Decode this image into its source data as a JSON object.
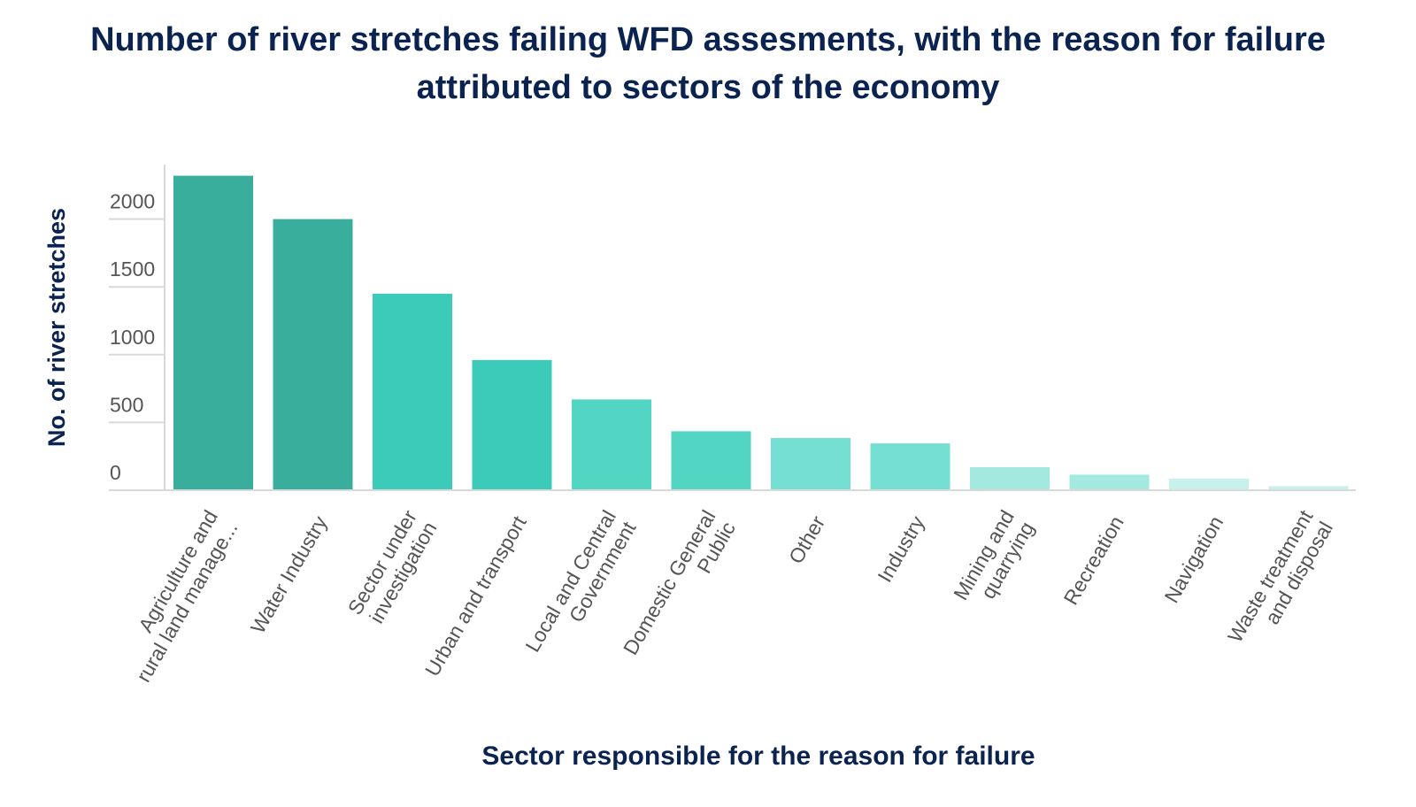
{
  "chart_data": {
    "type": "bar",
    "title_lines": [
      "Number of river stretches failing WFD assesments, with the reason for failure",
      "attributed to sectors of the economy"
    ],
    "xlabel": "Sector responsible for the reason for failure",
    "ylabel": "No. of river stretches",
    "ylim": [
      0,
      2400
    ],
    "yticks": [
      0,
      500,
      1000,
      1500,
      2000
    ],
    "grid": false,
    "categories": [
      [
        "Agriculture and",
        "rural land manage..."
      ],
      [
        "Water Industry"
      ],
      [
        "Sector under",
        "investigation"
      ],
      [
        "Urban and transport"
      ],
      [
        "Local and Central",
        "Government"
      ],
      [
        "Domestic General",
        "Public"
      ],
      [
        "Other"
      ],
      [
        "Industry"
      ],
      [
        "Mining and",
        "quarrying"
      ],
      [
        "Recreation"
      ],
      [
        "Navigation"
      ],
      [
        "Waste treatment",
        "and disposal"
      ]
    ],
    "values": [
      2320,
      2000,
      1450,
      960,
      670,
      435,
      385,
      345,
      170,
      115,
      85,
      30
    ],
    "colors": [
      "#3aae9c",
      "#3aae9c",
      "#3ccbb8",
      "#3ccbb8",
      "#52d6c3",
      "#52d6c3",
      "#74dfd2",
      "#74dfd2",
      "#a3e9e0",
      "#a3e9e0",
      "#c6f1ec",
      "#c6f1ec"
    ],
    "axis_color": "#d9d9d9"
  }
}
